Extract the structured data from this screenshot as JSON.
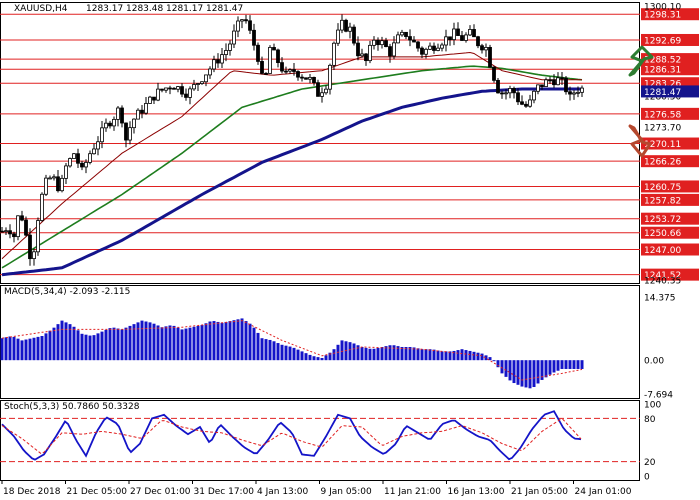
{
  "header": {
    "symbol_line": "XAUUSD,H4",
    "ohlc": [
      "1283.17",
      "1283.48",
      "1281.17",
      "1281.47"
    ]
  },
  "colors": {
    "level_line": "#e02020",
    "level_label_bg": "#e02020",
    "ma_fast": "#8b0000",
    "ma_mid": "#1e7d1e",
    "ma_slow": "#14148c",
    "candle": "#000000",
    "macd_hist": "#1414c8",
    "macd_signal": "#e02020",
    "stoch_main": "#1414c8",
    "stoch_signal": "#e02020",
    "arrow_up": "#2e7d32",
    "arrow_down": "#b5482e",
    "current_price_bg": "#14148c"
  },
  "icons": {
    "up": "green-up-arrow-icon",
    "down": "brown-down-arrow-icon"
  },
  "chart_data": [
    {
      "type": "candlestick",
      "title": "XAUUSD,H4",
      "ylim": [
        1240.35,
        1300.1
      ],
      "y_ticks": [
        "1300.10",
        "1280.50",
        "1273.70",
        "1240.35"
      ],
      "current_price": "1281.47",
      "levels": [
        "1298.31",
        "1292.69",
        "1288.52",
        "1286.31",
        "1283.26",
        "1276.58",
        "1270.11",
        "1266.26",
        "1260.75",
        "1257.82",
        "1253.72",
        "1250.66",
        "1247.00",
        "1241.52"
      ],
      "x_ticks": [
        "18 Dec 2018",
        "21 Dec 05:00",
        "27 Dec 01:00",
        "31 Dec 17:00",
        "4 Jan 13:00",
        "9 Jan 05:00",
        "11 Jan 21:00",
        "16 Jan 13:00",
        "21 Jan 05:00",
        "24 Jan 01:00"
      ],
      "path": [
        [
          0,
          1251
        ],
        [
          6,
          1252
        ],
        [
          12,
          1250
        ],
        [
          18,
          1256
        ],
        [
          24,
          1250
        ],
        [
          30,
          1244
        ],
        [
          36,
          1254
        ],
        [
          42,
          1261
        ],
        [
          50,
          1263
        ],
        [
          58,
          1260
        ],
        [
          64,
          1265
        ],
        [
          72,
          1268
        ],
        [
          80,
          1264
        ],
        [
          88,
          1268
        ],
        [
          96,
          1271
        ],
        [
          104,
          1274
        ],
        [
          112,
          1276
        ],
        [
          118,
          1278
        ],
        [
          124,
          1271
        ],
        [
          130,
          1275
        ],
        [
          138,
          1277
        ],
        [
          146,
          1279
        ],
        [
          154,
          1281
        ],
        [
          162,
          1282
        ],
        [
          170,
          1283
        ],
        [
          178,
          1282
        ],
        [
          186,
          1281
        ],
        [
          194,
          1283
        ],
        [
          202,
          1285
        ],
        [
          210,
          1287
        ],
        [
          218,
          1289
        ],
        [
          226,
          1291
        ],
        [
          234,
          1295
        ],
        [
          242,
          1298
        ],
        [
          250,
          1293
        ],
        [
          256,
          1289
        ],
        [
          262,
          1282
        ],
        [
          268,
          1291
        ],
        [
          276,
          1288
        ],
        [
          284,
          1285
        ],
        [
          292,
          1286
        ],
        [
          300,
          1285
        ],
        [
          308,
          1284
        ],
        [
          316,
          1281
        ],
        [
          324,
          1283
        ],
        [
          332,
          1292
        ],
        [
          340,
          1296
        ],
        [
          348,
          1295
        ],
        [
          356,
          1290
        ],
        [
          364,
          1288
        ],
        [
          372,
          1293
        ],
        [
          380,
          1292
        ],
        [
          388,
          1290
        ],
        [
          396,
          1293
        ],
        [
          404,
          1294
        ],
        [
          412,
          1292
        ],
        [
          420,
          1290
        ],
        [
          428,
          1291
        ],
        [
          436,
          1292
        ],
        [
          444,
          1293
        ],
        [
          452,
          1294
        ],
        [
          460,
          1293
        ],
        [
          468,
          1294
        ],
        [
          476,
          1292
        ],
        [
          484,
          1291
        ],
        [
          490,
          1286
        ],
        [
          496,
          1282
        ],
        [
          502,
          1281
        ],
        [
          510,
          1282
        ],
        [
          518,
          1279
        ],
        [
          526,
          1278
        ],
        [
          534,
          1282
        ],
        [
          540,
          1283
        ],
        [
          548,
          1284
        ],
        [
          556,
          1284
        ],
        [
          562,
          1283
        ],
        [
          568,
          1280
        ],
        [
          574,
          1282
        ],
        [
          580,
          1282
        ]
      ],
      "series": [
        {
          "name": "",
          "values": [
            [
              0,
              1241.5
            ],
            [
              60,
              1243
            ],
            [
              120,
              1249
            ],
            [
              200,
              1259
            ],
            [
              260,
              1266
            ],
            [
              320,
              1271
            ],
            [
              360,
              1275
            ],
            [
              400,
              1278
            ],
            [
              440,
              1280
            ],
            [
              480,
              1281.5
            ],
            [
              520,
              1282
            ],
            [
              580,
              1282
            ]
          ]
        },
        {
          "name": "",
          "values": [
            [
              0,
              1243
            ],
            [
              60,
              1251
            ],
            [
              120,
              1259
            ],
            [
              180,
              1268
            ],
            [
              240,
              1278
            ],
            [
              300,
              1282
            ],
            [
              360,
              1284
            ],
            [
              420,
              1286
            ],
            [
              470,
              1287
            ],
            [
              500,
              1286.5
            ],
            [
              540,
              1285
            ],
            [
              580,
              1284
            ]
          ]
        },
        {
          "name": "",
          "values": [
            [
              0,
              1245
            ],
            [
              60,
              1257
            ],
            [
              120,
              1268
            ],
            [
              180,
              1276
            ],
            [
              230,
              1286
            ],
            [
              270,
              1285
            ],
            [
              320,
              1286
            ],
            [
              360,
              1289
            ],
            [
              420,
              1289
            ],
            [
              470,
              1290
            ],
            [
              500,
              1286
            ],
            [
              540,
              1284
            ],
            [
              580,
              1284
            ]
          ]
        }
      ]
    },
    {
      "type": "bar",
      "title": "MACD(5,34,4) -2.093 -2.115",
      "ylim": [
        -7.694,
        14.375
      ],
      "y_ticks": [
        "14.375",
        "0.00",
        "-7.694"
      ],
      "values": [
        [
          0,
          5
        ],
        [
          10,
          5.5
        ],
        [
          20,
          4.5
        ],
        [
          30,
          5
        ],
        [
          40,
          5.5
        ],
        [
          50,
          7
        ],
        [
          60,
          9
        ],
        [
          70,
          8
        ],
        [
          80,
          6
        ],
        [
          90,
          5.5
        ],
        [
          100,
          6.5
        ],
        [
          110,
          7.5
        ],
        [
          120,
          7
        ],
        [
          130,
          8
        ],
        [
          140,
          9
        ],
        [
          150,
          8.5
        ],
        [
          160,
          7.5
        ],
        [
          170,
          8
        ],
        [
          180,
          7
        ],
        [
          190,
          7.5
        ],
        [
          200,
          8
        ],
        [
          210,
          9
        ],
        [
          220,
          8.5
        ],
        [
          230,
          9
        ],
        [
          240,
          9.5
        ],
        [
          250,
          8
        ],
        [
          260,
          5
        ],
        [
          270,
          4.5
        ],
        [
          280,
          3.5
        ],
        [
          290,
          3
        ],
        [
          300,
          2
        ],
        [
          310,
          1
        ],
        [
          320,
          0.5
        ],
        [
          330,
          2
        ],
        [
          340,
          4.5
        ],
        [
          350,
          4
        ],
        [
          360,
          3
        ],
        [
          370,
          2.5
        ],
        [
          380,
          3
        ],
        [
          390,
          3.5
        ],
        [
          400,
          3
        ],
        [
          410,
          3
        ],
        [
          420,
          2.5
        ],
        [
          430,
          2.5
        ],
        [
          440,
          2
        ],
        [
          450,
          2
        ],
        [
          460,
          2.5
        ],
        [
          470,
          2
        ],
        [
          480,
          1.5
        ],
        [
          490,
          0.5
        ],
        [
          500,
          -3
        ],
        [
          510,
          -5
        ],
        [
          520,
          -6
        ],
        [
          530,
          -6.5
        ],
        [
          540,
          -4.5
        ],
        [
          550,
          -3
        ],
        [
          560,
          -2
        ],
        [
          570,
          -2
        ],
        [
          580,
          -2
        ]
      ],
      "signal": [
        [
          0,
          5
        ],
        [
          60,
          7
        ],
        [
          120,
          7
        ],
        [
          180,
          7.5
        ],
        [
          240,
          9
        ],
        [
          280,
          4.5
        ],
        [
          320,
          1
        ],
        [
          360,
          3
        ],
        [
          420,
          2.5
        ],
        [
          480,
          1
        ],
        [
          520,
          -4.5
        ],
        [
          560,
          -3
        ],
        [
          580,
          -2.1
        ]
      ]
    },
    {
      "type": "line",
      "title": "Stoch(5,3,3) 50.7860 50.3328",
      "ylim": [
        0,
        100
      ],
      "y_ticks": [
        "100",
        "80",
        "20",
        "0"
      ],
      "levels": [
        80,
        20
      ],
      "series": [
        {
          "name": "",
          "values": [
            [
              0,
              72
            ],
            [
              12,
              55
            ],
            [
              22,
              35
            ],
            [
              32,
              22
            ],
            [
              42,
              30
            ],
            [
              54,
              55
            ],
            [
              64,
              78
            ],
            [
              74,
              50
            ],
            [
              84,
              28
            ],
            [
              94,
              60
            ],
            [
              104,
              82
            ],
            [
              116,
              72
            ],
            [
              128,
              32
            ],
            [
              138,
              45
            ],
            [
              150,
              80
            ],
            [
              162,
              85
            ],
            [
              174,
              70
            ],
            [
              186,
              58
            ],
            [
              198,
              68
            ],
            [
              208,
              45
            ],
            [
              218,
              72
            ],
            [
              230,
              55
            ],
            [
              242,
              40
            ],
            [
              254,
              30
            ],
            [
              266,
              50
            ],
            [
              278,
              75
            ],
            [
              290,
              60
            ],
            [
              300,
              30
            ],
            [
              312,
              28
            ],
            [
              324,
              55
            ],
            [
              336,
              85
            ],
            [
              348,
              80
            ],
            [
              358,
              55
            ],
            [
              370,
              40
            ],
            [
              382,
              30
            ],
            [
              394,
              45
            ],
            [
              404,
              70
            ],
            [
              416,
              60
            ],
            [
              428,
              50
            ],
            [
              440,
              72
            ],
            [
              452,
              78
            ],
            [
              464,
              65
            ],
            [
              476,
              55
            ],
            [
              488,
              50
            ],
            [
              498,
              35
            ],
            [
              508,
              22
            ],
            [
              518,
              38
            ],
            [
              530,
              65
            ],
            [
              542,
              85
            ],
            [
              552,
              90
            ],
            [
              562,
              65
            ],
            [
              572,
              52
            ],
            [
              580,
              51
            ]
          ]
        },
        {
          "name": "",
          "values": [
            [
              0,
              70
            ],
            [
              20,
              52
            ],
            [
              40,
              30
            ],
            [
              60,
              60
            ],
            [
              80,
              58
            ],
            [
              100,
              62
            ],
            [
              120,
              58
            ],
            [
              140,
              52
            ],
            [
              160,
              78
            ],
            [
              180,
              68
            ],
            [
              200,
              62
            ],
            [
              220,
              60
            ],
            [
              240,
              50
            ],
            [
              260,
              42
            ],
            [
              280,
              60
            ],
            [
              300,
              48
            ],
            [
              320,
              40
            ],
            [
              340,
              70
            ],
            [
              360,
              68
            ],
            [
              380,
              42
            ],
            [
              400,
              55
            ],
            [
              420,
              60
            ],
            [
              440,
              62
            ],
            [
              460,
              70
            ],
            [
              480,
              60
            ],
            [
              500,
              45
            ],
            [
              520,
              35
            ],
            [
              540,
              62
            ],
            [
              560,
              80
            ],
            [
              580,
              50
            ]
          ]
        }
      ]
    }
  ]
}
